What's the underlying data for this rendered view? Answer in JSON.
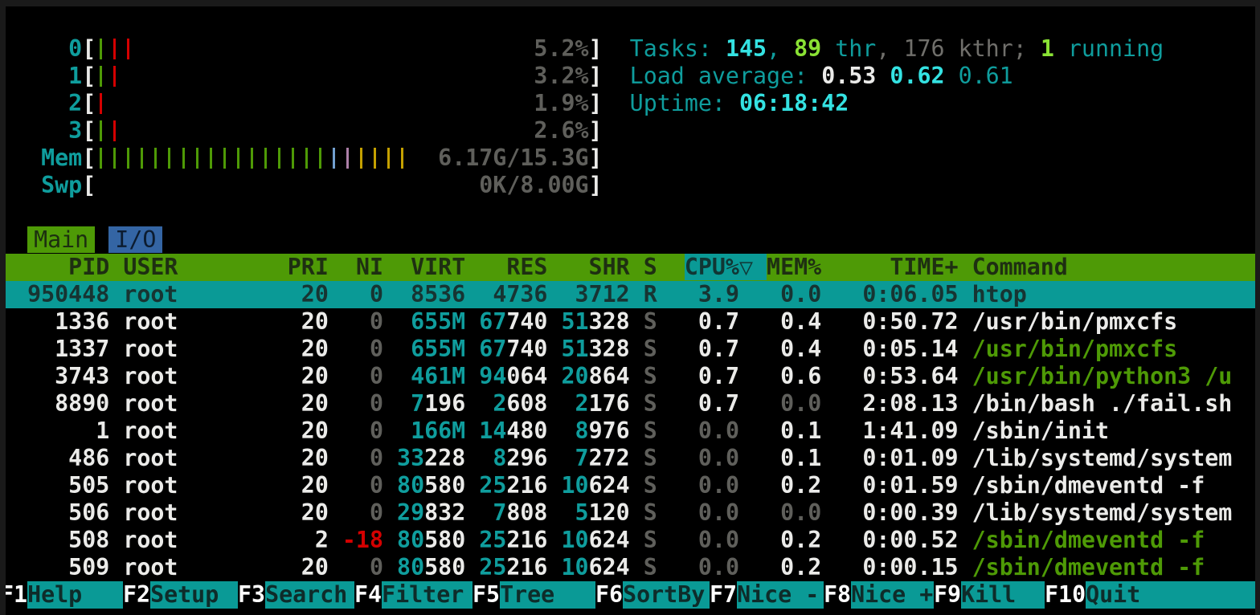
{
  "app": "htop",
  "palette": {
    "background": "#000000",
    "frame": "#1a1a1a",
    "teal_text": "#0f9d9d",
    "cyan_bold": "#34e2e2",
    "green_bright": "#8ae234",
    "green_dark": "#4e9a06",
    "white_bold": "#ebebe9",
    "gray": "#5f5f5b",
    "red": "#d40000",
    "selected_bg": "#0a9a96",
    "header_bg": "#4e9a06",
    "tab_active_bg": "#4e9a06",
    "tab_inactive_bg": "#3465a4",
    "bar_blue": "#729fcf",
    "bar_purple": "#ad7fa8",
    "bar_yellow": "#c4a000"
  },
  "summary": {
    "meters": [
      {
        "label": "0",
        "value": "5.2%",
        "bars": "grr"
      },
      {
        "label": "1",
        "value": "3.2%",
        "bars": "gr"
      },
      {
        "label": "2",
        "value": "1.9%",
        "bars": "r"
      },
      {
        "label": "3",
        "value": "2.6%",
        "bars": "gr"
      },
      {
        "label": "Mem",
        "value": "6.17G/15.3G",
        "bars": "gggggggggggggggggbpyyyy"
      },
      {
        "label": "Swp",
        "value": "0K/8.00G",
        "bars": ""
      }
    ],
    "right": [
      [
        [
          "Tasks: ",
          "t"
        ],
        [
          "145",
          "c"
        ],
        [
          ", ",
          "t"
        ],
        [
          "89",
          "lg"
        ],
        [
          " thr",
          "t"
        ],
        [
          ", ",
          "gy"
        ],
        [
          "176 kthr; ",
          "gy"
        ],
        [
          "1",
          "lg"
        ],
        [
          " running",
          "t"
        ]
      ],
      [
        [
          "Load average: ",
          "t"
        ],
        [
          "0.53 ",
          "w"
        ],
        [
          "0.62 ",
          "c"
        ],
        [
          "0.61",
          "t"
        ]
      ],
      [
        [
          "Uptime: ",
          "t"
        ],
        [
          "06:18:42",
          "c"
        ]
      ]
    ]
  },
  "tabs": {
    "items": [
      {
        "label": "Main",
        "active": true
      },
      {
        "label": "I/O",
        "active": false
      }
    ]
  },
  "table": {
    "header": {
      "left": "     PID USER        PRI  NI  VIRT   RES   SHR S  ",
      "sort": "CPU%▽ ",
      "right": "MEM%     TIME+ Command",
      "sort_column": "CPU%",
      "sort_icon": "▽"
    },
    "rows": [
      {
        "pid": "950448",
        "user": "root",
        "pri": "20",
        "ni": "0",
        "nc": "g",
        "virt": [
          "",
          "8536"
        ],
        "res": [
          "",
          "4736"
        ],
        "shr": [
          "",
          "3712"
        ],
        "s": "R",
        "cpu": "3.9",
        "cc": "w",
        "mem": "0.0",
        "mc": "w",
        "time": "0:06.05",
        "cmd": "htop",
        "cmdc": "w",
        "selected": true
      },
      {
        "pid": "1336",
        "user": "root",
        "pri": "20",
        "ni": "0",
        "nc": "g",
        "virt": [
          "655M",
          ""
        ],
        "res": [
          "67",
          "740"
        ],
        "shr": [
          "51",
          "328"
        ],
        "s": "S",
        "cpu": "0.7",
        "cc": "w",
        "mem": "0.4",
        "mc": "w",
        "time": "0:50.72",
        "cmd": "/usr/bin/pmxcfs",
        "cmdc": "w",
        "selected": false
      },
      {
        "pid": "1337",
        "user": "root",
        "pri": "20",
        "ni": "0",
        "nc": "g",
        "virt": [
          "655M",
          ""
        ],
        "res": [
          "67",
          "740"
        ],
        "shr": [
          "51",
          "328"
        ],
        "s": "S",
        "cpu": "0.7",
        "cc": "w",
        "mem": "0.4",
        "mc": "w",
        "time": "0:05.14",
        "cmd": "/usr/bin/pmxcfs",
        "cmdc": "dg",
        "selected": false
      },
      {
        "pid": "3743",
        "user": "root",
        "pri": "20",
        "ni": "0",
        "nc": "g",
        "virt": [
          "461M",
          ""
        ],
        "res": [
          "94",
          "064"
        ],
        "shr": [
          "20",
          "864"
        ],
        "s": "S",
        "cpu": "0.7",
        "cc": "w",
        "mem": "0.6",
        "mc": "w",
        "time": "0:53.64",
        "cmd": "/usr/bin/python3 /u",
        "cmdc": "dg",
        "selected": false
      },
      {
        "pid": "8890",
        "user": "root",
        "pri": "20",
        "ni": "0",
        "nc": "g",
        "virt": [
          "7",
          "196"
        ],
        "res": [
          "2",
          "608"
        ],
        "shr": [
          "2",
          "176"
        ],
        "s": "S",
        "cpu": "0.7",
        "cc": "w",
        "mem": "0.0",
        "mc": "g",
        "time": "2:08.13",
        "cmd": "/bin/bash ./fail.sh",
        "cmdc": "w",
        "selected": false
      },
      {
        "pid": "1",
        "user": "root",
        "pri": "20",
        "ni": "0",
        "nc": "g",
        "virt": [
          "166M",
          ""
        ],
        "res": [
          "14",
          "480"
        ],
        "shr": [
          "8",
          "976"
        ],
        "s": "S",
        "cpu": "0.0",
        "cc": "g",
        "mem": "0.1",
        "mc": "w",
        "time": "1:41.09",
        "cmd": "/sbin/init",
        "cmdc": "w",
        "selected": false
      },
      {
        "pid": "486",
        "user": "root",
        "pri": "20",
        "ni": "0",
        "nc": "g",
        "virt": [
          "33",
          "228"
        ],
        "res": [
          "8",
          "296"
        ],
        "shr": [
          "7",
          "272"
        ],
        "s": "S",
        "cpu": "0.0",
        "cc": "g",
        "mem": "0.1",
        "mc": "w",
        "time": "0:01.09",
        "cmd": "/lib/systemd/system",
        "cmdc": "w",
        "selected": false
      },
      {
        "pid": "505",
        "user": "root",
        "pri": "20",
        "ni": "0",
        "nc": "g",
        "virt": [
          "80",
          "580"
        ],
        "res": [
          "25",
          "216"
        ],
        "shr": [
          "10",
          "624"
        ],
        "s": "S",
        "cpu": "0.0",
        "cc": "g",
        "mem": "0.2",
        "mc": "w",
        "time": "0:01.59",
        "cmd": "/sbin/dmeventd -f",
        "cmdc": "w",
        "selected": false
      },
      {
        "pid": "506",
        "user": "root",
        "pri": "20",
        "ni": "0",
        "nc": "g",
        "virt": [
          "29",
          "832"
        ],
        "res": [
          "7",
          "808"
        ],
        "shr": [
          "5",
          "120"
        ],
        "s": "S",
        "cpu": "0.0",
        "cc": "g",
        "mem": "0.0",
        "mc": "g",
        "time": "0:00.39",
        "cmd": "/lib/systemd/system",
        "cmdc": "w",
        "selected": false
      },
      {
        "pid": "508",
        "user": "root",
        "pri": "2",
        "ni": "-18",
        "nc": "r",
        "virt": [
          "80",
          "580"
        ],
        "res": [
          "25",
          "216"
        ],
        "shr": [
          "10",
          "624"
        ],
        "s": "S",
        "cpu": "0.0",
        "cc": "g",
        "mem": "0.2",
        "mc": "w",
        "time": "0:00.52",
        "cmd": "/sbin/dmeventd -f",
        "cmdc": "dg",
        "selected": false
      },
      {
        "pid": "509",
        "user": "root",
        "pri": "20",
        "ni": "0",
        "nc": "g",
        "virt": [
          "80",
          "580"
        ],
        "res": [
          "25",
          "216"
        ],
        "shr": [
          "10",
          "624"
        ],
        "s": "S",
        "cpu": "0.0",
        "cc": "g",
        "mem": "0.2",
        "mc": "w",
        "time": "0:00.15",
        "cmd": "/sbin/dmeventd -f",
        "cmdc": "dg",
        "selected": false
      }
    ]
  },
  "fnbar": {
    "items": [
      {
        "key": "F1",
        "label": "Help"
      },
      {
        "key": "F2",
        "label": "Setup"
      },
      {
        "key": "F3",
        "label": "Search"
      },
      {
        "key": "F4",
        "label": "Filter"
      },
      {
        "key": "F5",
        "label": "Tree"
      },
      {
        "key": "F6",
        "label": "SortBy"
      },
      {
        "key": "F7",
        "label": "Nice -"
      },
      {
        "key": "F8",
        "label": "Nice +"
      },
      {
        "key": "F9",
        "label": "Kill"
      },
      {
        "key": "F10",
        "label": "Quit"
      }
    ]
  }
}
